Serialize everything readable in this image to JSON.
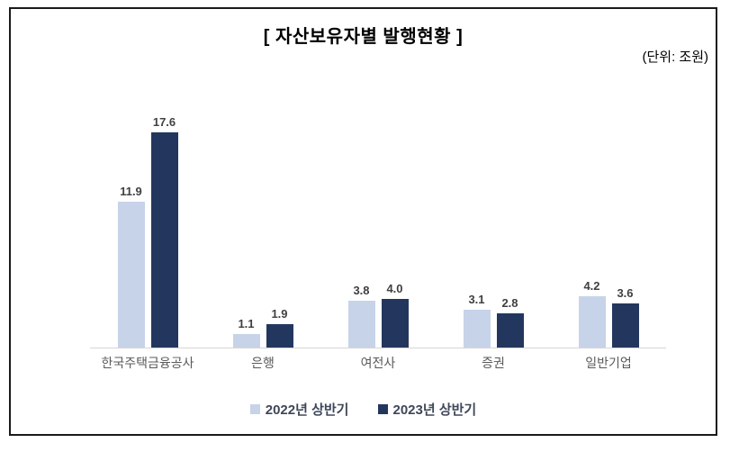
{
  "chart_data": {
    "type": "bar",
    "title": "[ 자산보유자별  발행현황 ]",
    "unit_label": "(단위: 조원)",
    "categories": [
      "한국주택금융공사",
      "은행",
      "여전사",
      "증권",
      "일반기업"
    ],
    "series": [
      {
        "name": "2022년 상반기",
        "color": "#c7d3e8",
        "values": [
          11.9,
          1.1,
          3.8,
          3.1,
          4.2
        ]
      },
      {
        "name": "2023년 상반기",
        "color": "#23375e",
        "values": [
          17.6,
          1.9,
          4.0,
          2.8,
          3.6
        ]
      }
    ],
    "ylim": [
      0,
      18
    ],
    "grid": false,
    "legend_position": "bottom",
    "value_labels": true,
    "value_label_color": "#404040",
    "axis_line_color": "#d6d6d6",
    "frame_border_color": "#1a1a1a"
  }
}
